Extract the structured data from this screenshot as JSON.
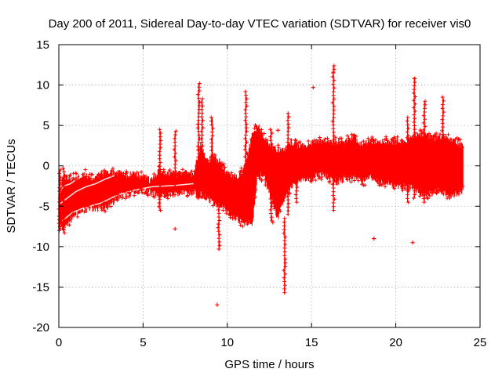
{
  "chart_data": {
    "type": "scatter",
    "title": "Day 200 of 2011, Sidereal Day-to-day VTEC variation (SDTVAR) for receiver vis0",
    "xlabel": "GPS time / hours",
    "ylabel": "SDTVAR / TECUs",
    "xlim": [
      0,
      25
    ],
    "ylim": [
      -20,
      15
    ],
    "xticks": [
      0,
      5,
      10,
      15,
      20,
      25
    ],
    "yticks": [
      -20,
      -15,
      -10,
      -5,
      0,
      5,
      10,
      15
    ],
    "grid": true,
    "marker": "+",
    "series": [
      {
        "name": "SDTVAR",
        "color": "#ff0000",
        "band_description": "dense band of points; each entry [x, y_low, y_high]",
        "band": [
          [
            0.0,
            -7.5,
            -3.5
          ],
          [
            0.3,
            -7.8,
            -1.5
          ],
          [
            0.6,
            -7.0,
            -1.5
          ],
          [
            1.0,
            -5.8,
            -1.5
          ],
          [
            1.5,
            -5.5,
            -1.0
          ],
          [
            2.0,
            -5.3,
            -1.5
          ],
          [
            2.5,
            -5.2,
            -1.0
          ],
          [
            3.0,
            -5.0,
            -0.8
          ],
          [
            3.5,
            -3.8,
            -0.8
          ],
          [
            4.0,
            -3.5,
            -1.2
          ],
          [
            4.5,
            -3.3,
            -1.0
          ],
          [
            5.0,
            -3.2,
            -1.4
          ],
          [
            5.5,
            -3.2,
            -1.8
          ],
          [
            6.0,
            -3.8,
            -0.5
          ],
          [
            6.5,
            -3.5,
            -1.0
          ],
          [
            7.0,
            -3.5,
            -1.0
          ],
          [
            7.5,
            -3.2,
            -0.8
          ],
          [
            8.0,
            -3.2,
            -1.0
          ],
          [
            8.4,
            -3.5,
            2.5
          ],
          [
            8.8,
            -4.0,
            0.5
          ],
          [
            9.2,
            -4.5,
            1.0
          ],
          [
            9.6,
            -5.0,
            0.5
          ],
          [
            10.0,
            -5.5,
            -1.0
          ],
          [
            10.5,
            -6.5,
            -1.5
          ],
          [
            11.0,
            -7.0,
            -0.5
          ],
          [
            11.5,
            -7.0,
            4.0
          ],
          [
            11.8,
            -1.0,
            5.0
          ],
          [
            12.2,
            -1.5,
            3.5
          ],
          [
            12.6,
            -4.0,
            2.5
          ],
          [
            13.0,
            -6.5,
            2.0
          ],
          [
            13.4,
            -4.0,
            2.0
          ],
          [
            13.8,
            -2.5,
            3.0
          ],
          [
            14.2,
            -2.0,
            2.5
          ],
          [
            14.6,
            -1.5,
            2.5
          ],
          [
            15.0,
            -1.5,
            2.8
          ],
          [
            15.5,
            -1.0,
            3.0
          ],
          [
            16.0,
            -1.5,
            2.8
          ],
          [
            16.5,
            -2.0,
            3.0
          ],
          [
            17.0,
            -1.5,
            3.0
          ],
          [
            17.5,
            -1.5,
            3.5
          ],
          [
            18.0,
            -2.0,
            2.5
          ],
          [
            18.5,
            -1.5,
            3.0
          ],
          [
            19.0,
            -2.0,
            3.0
          ],
          [
            19.5,
            -2.0,
            3.0
          ],
          [
            20.0,
            -2.5,
            3.0
          ],
          [
            20.5,
            -2.5,
            3.0
          ],
          [
            21.0,
            -2.5,
            3.5
          ],
          [
            21.5,
            -3.5,
            4.0
          ],
          [
            22.0,
            -3.5,
            3.5
          ],
          [
            22.5,
            -3.0,
            3.5
          ],
          [
            23.0,
            -3.5,
            3.5
          ],
          [
            23.5,
            -3.5,
            3.0
          ],
          [
            24.0,
            -3.0,
            2.5
          ]
        ],
        "inner_tracks": [
          [
            [
              0.0,
              -3.5
            ],
            [
              0.3,
              -2.5
            ],
            [
              0.7,
              -2.2
            ],
            [
              1.1,
              -1.6
            ],
            [
              1.6,
              -1.1
            ]
          ],
          [
            [
              0.0,
              -4.8
            ],
            [
              0.5,
              -4.0
            ],
            [
              1.0,
              -3.2
            ],
            [
              1.6,
              -2.6
            ],
            [
              2.2,
              -2.2
            ],
            [
              2.8,
              -1.6
            ],
            [
              3.3,
              -1.2
            ]
          ],
          [
            [
              0.2,
              -6.8
            ],
            [
              0.8,
              -5.8
            ],
            [
              1.5,
              -5.2
            ],
            [
              2.5,
              -4.6
            ],
            [
              3.5,
              -3.6
            ],
            [
              4.5,
              -3.0
            ],
            [
              5.5,
              -2.6
            ],
            [
              7.0,
              -2.4
            ],
            [
              8.0,
              -2.2
            ]
          ]
        ],
        "spikes": [
          [
            0.05,
            -8.0,
            -0.5
          ],
          [
            0.3,
            -8.3,
            -0.3
          ],
          [
            6.0,
            -5.5,
            4.5
          ],
          [
            6.9,
            -3.0,
            4.3
          ],
          [
            8.3,
            -4.0,
            10.2
          ],
          [
            8.5,
            -3.8,
            8.3
          ],
          [
            9.1,
            -4.0,
            6.0
          ],
          [
            9.5,
            -10.3,
            -5.0
          ],
          [
            11.1,
            -6.5,
            9.2
          ],
          [
            12.6,
            -6.8,
            4.5
          ],
          [
            13.4,
            -15.7,
            -6.5
          ],
          [
            13.6,
            -6.0,
            6.5
          ],
          [
            14.1,
            -4.5,
            2.0
          ],
          [
            16.3,
            -5.5,
            12.4
          ],
          [
            20.7,
            -4.5,
            6.0
          ],
          [
            21.1,
            -4.0,
            10.8
          ],
          [
            21.7,
            -4.5,
            8.0
          ],
          [
            22.8,
            -3.5,
            8.5
          ]
        ],
        "outliers": [
          [
            6.9,
            -7.8
          ],
          [
            9.4,
            -17.2
          ],
          [
            15.1,
            9.7
          ],
          [
            18.7,
            -9.0
          ],
          [
            21.0,
            -9.5
          ],
          [
            12.7,
            -7.0
          ],
          [
            13.0,
            4.4
          ],
          [
            9.5,
            -10.3
          ],
          [
            16.3,
            11.6
          ],
          [
            21.1,
            10.8
          ]
        ]
      }
    ]
  }
}
